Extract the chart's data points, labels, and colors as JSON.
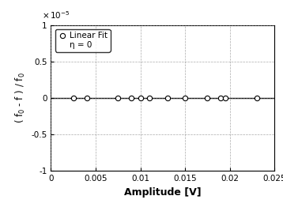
{
  "x_data": [
    0.0025,
    0.004,
    0.0075,
    0.009,
    0.01,
    0.011,
    0.013,
    0.015,
    0.0175,
    0.019,
    0.0195,
    0.023
  ],
  "y_data": [
    0.0,
    0.0,
    0.0,
    0.0,
    0.0,
    0.0,
    0.0,
    0.0,
    0.0,
    0.0,
    0.0,
    0.0
  ],
  "fit_x": [
    0.0,
    0.025
  ],
  "fit_y": [
    0.0,
    0.0
  ],
  "xlim": [
    0,
    0.025
  ],
  "ylim": [
    -1e-05,
    1e-05
  ],
  "xlabel": "Amplitude [V]",
  "ylabel": "( f$_0$ - f ) / f$_0$",
  "legend_marker_label": "Linear Fit",
  "legend_text_label": "η = 0",
  "grid_color": "#888888",
  "marker_color": "black",
  "line_color": "black",
  "bg_color": "white",
  "yticks": [
    -1e-05,
    -5e-06,
    0,
    5e-06,
    1e-05
  ],
  "ytick_labels": [
    "-1",
    "-0.5",
    "0",
    "0.5",
    "1"
  ],
  "xticks": [
    0,
    0.005,
    0.01,
    0.015,
    0.02,
    0.025
  ],
  "xtick_labels": [
    "0",
    "0.005",
    "0.01",
    "0.015",
    "0.02",
    "0.025"
  ]
}
